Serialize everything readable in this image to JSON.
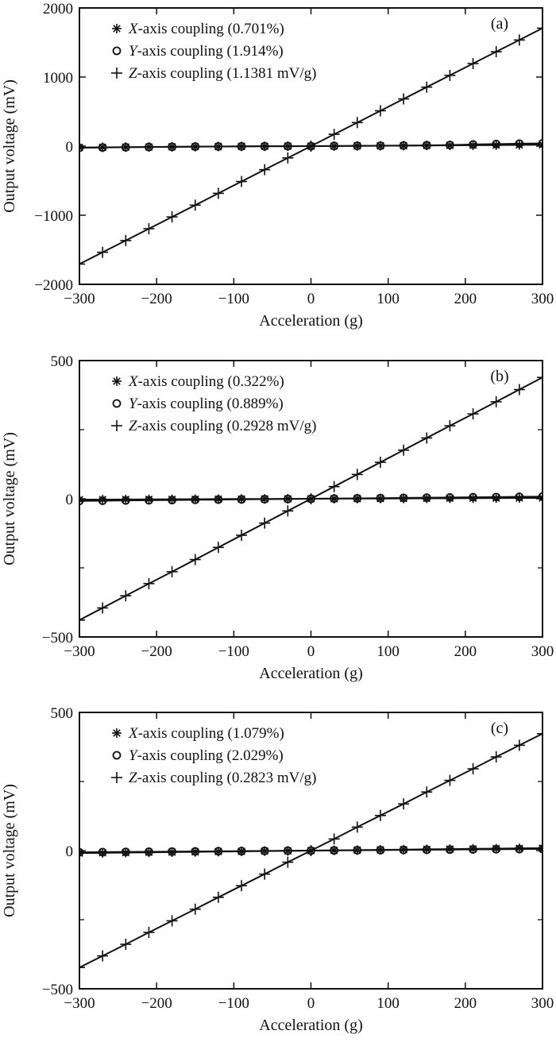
{
  "chart_data": [
    {
      "type": "line",
      "panel_label": "(a)",
      "xlabel": "Acceleration (g)",
      "ylabel": "Output voltage (mV)",
      "xlim": [
        -300,
        300
      ],
      "ylim": [
        -2000,
        2000
      ],
      "xticks": [
        -300,
        -200,
        -100,
        0,
        100,
        200,
        300
      ],
      "xtick_labels": [
        "−300",
        "−200",
        "−100",
        "0",
        "100",
        "200",
        "300"
      ],
      "yticks": [
        -2000,
        -1000,
        0,
        1000,
        2000
      ],
      "ytick_labels": [
        "−2000",
        "−1000",
        "0",
        "1000",
        "2000"
      ],
      "grid": false,
      "legend_position": "top-left",
      "x": [
        -300,
        -270,
        -240,
        -210,
        -180,
        -150,
        -120,
        -90,
        -60,
        -30,
        0,
        30,
        60,
        90,
        120,
        150,
        180,
        210,
        240,
        270,
        300
      ],
      "series": [
        {
          "name": "X-axis coupling (0.701%)",
          "axis_letter": "X",
          "legend_rest": "-axis coupling (0.701%)",
          "marker": "asterisk",
          "values": [
            -20,
            -17,
            -14,
            -12,
            -10,
            -8,
            -6,
            -4,
            -2,
            -1,
            0,
            1,
            3,
            5,
            7,
            9,
            11,
            13,
            15,
            17,
            20
          ]
        },
        {
          "name": "Y-axis coupling (1.914%)",
          "axis_letter": "Y",
          "legend_rest": "-axis coupling (1.914%)",
          "marker": "circle",
          "values": [
            -24,
            -20,
            -16,
            -13,
            -10,
            -7,
            -5,
            -3,
            -2,
            -1,
            0,
            2,
            4,
            6,
            9,
            12,
            16,
            24,
            30,
            36,
            40
          ]
        },
        {
          "name": "Z-axis coupling (1.1381 mV/g)",
          "axis_letter": "Z",
          "legend_rest": "-axis coupling (1.1381 mV/g)",
          "marker": "plus",
          "values": [
            -1707,
            -1536,
            -1366,
            -1195,
            -1024,
            -854,
            -683,
            -512,
            -341,
            -171,
            0,
            171,
            341,
            512,
            683,
            854,
            1024,
            1195,
            1366,
            1536,
            1707
          ]
        }
      ]
    },
    {
      "type": "line",
      "panel_label": "(b)",
      "xlabel": "Acceleration (g)",
      "ylabel": "Output voltage (mV)",
      "xlim": [
        -300,
        300
      ],
      "ylim": [
        -500,
        500
      ],
      "xticks": [
        -300,
        -200,
        -100,
        0,
        100,
        200,
        300
      ],
      "xtick_labels": [
        "−300",
        "−200",
        "−100",
        "0",
        "100",
        "200",
        "300"
      ],
      "yticks": [
        -500,
        0,
        500
      ],
      "ytick_labels": [
        "−500",
        "0",
        "500"
      ],
      "minor_yticks": [
        -250,
        250
      ],
      "grid": false,
      "legend_position": "top-left",
      "x": [
        -300,
        -270,
        -240,
        -210,
        -180,
        -150,
        -120,
        -90,
        -60,
        -30,
        0,
        30,
        60,
        90,
        120,
        150,
        180,
        210,
        240,
        270,
        300
      ],
      "series": [
        {
          "name": "X-axis coupling (0.322%)",
          "axis_letter": "X",
          "legend_rest": "-axis coupling (0.322%)",
          "marker": "asterisk",
          "values": [
            -3,
            -2.7,
            -2.4,
            -2.1,
            -1.8,
            -1.5,
            -1.2,
            -0.9,
            -0.6,
            -0.3,
            0,
            0.3,
            0.6,
            0.9,
            1.2,
            1.5,
            1.8,
            2.1,
            2.4,
            2.7,
            3
          ]
        },
        {
          "name": "Y-axis coupling (0.889%)",
          "axis_letter": "Y",
          "legend_rest": "-axis coupling (0.889%)",
          "marker": "circle",
          "values": [
            -7.8,
            -7,
            -6.2,
            -5.5,
            -4.7,
            -3.9,
            -3.1,
            -2.3,
            -1.6,
            -0.8,
            0,
            0.8,
            1.6,
            2.3,
            3.1,
            3.9,
            4.7,
            5.5,
            6.2,
            7,
            7.8
          ]
        },
        {
          "name": "Z-axis coupling (0.2928 mV/g)",
          "axis_letter": "Z",
          "legend_rest": "-axis coupling (0.2928 mV/g)",
          "marker": "plus",
          "values": [
            -439,
            -395,
            -351,
            -307,
            -264,
            -220,
            -176,
            -132,
            -88,
            -44,
            0,
            44,
            88,
            132,
            176,
            220,
            264,
            307,
            351,
            395,
            439
          ]
        }
      ]
    },
    {
      "type": "line",
      "panel_label": "(c)",
      "xlabel": "Acceleration (g)",
      "ylabel": "Output voltage (mV)",
      "xlim": [
        -300,
        300
      ],
      "ylim": [
        -500,
        500
      ],
      "xticks": [
        -300,
        -200,
        -100,
        0,
        100,
        200,
        300
      ],
      "xtick_labels": [
        "−300",
        "−200",
        "−100",
        "0",
        "100",
        "200",
        "300"
      ],
      "yticks": [
        -500,
        0,
        500
      ],
      "ytick_labels": [
        "−500",
        "0",
        "500"
      ],
      "minor_yticks": [
        -250,
        250
      ],
      "grid": false,
      "legend_position": "top-left",
      "x": [
        -300,
        -270,
        -240,
        -210,
        -180,
        -150,
        -120,
        -90,
        -60,
        -30,
        0,
        30,
        60,
        90,
        120,
        150,
        180,
        210,
        240,
        270,
        300
      ],
      "series": [
        {
          "name": "X-axis coupling (1.079%)",
          "axis_letter": "X",
          "legend_rest": "-axis coupling (1.079%)",
          "marker": "asterisk",
          "values": [
            -9,
            -8.2,
            -7.3,
            -6.4,
            -5.5,
            -4.6,
            -3.6,
            -2.7,
            -1.8,
            -0.9,
            0,
            0.9,
            1.8,
            2.7,
            3.6,
            4.6,
            5.5,
            6.4,
            7.3,
            8.2,
            9
          ]
        },
        {
          "name": "Y-axis coupling (2.029%)",
          "axis_letter": "Y",
          "legend_rest": "-axis coupling (2.029%)",
          "marker": "circle",
          "values": [
            -6,
            -5.4,
            -4.8,
            -4.2,
            -3.6,
            -3,
            -2.4,
            -1.8,
            -1.2,
            -0.6,
            0,
            0.6,
            1.2,
            1.8,
            2.4,
            3,
            3.6,
            4.2,
            4.8,
            5.4,
            6
          ]
        },
        {
          "name": "Z-axis coupling (0.2823 mV/g)",
          "axis_letter": "Z",
          "legend_rest": "-axis coupling (0.2823 mV/g)",
          "marker": "plus",
          "values": [
            -423,
            -381,
            -339,
            -296,
            -254,
            -212,
            -169,
            -127,
            -85,
            -42,
            0,
            42,
            85,
            127,
            169,
            212,
            254,
            296,
            339,
            381,
            423
          ]
        }
      ]
    }
  ]
}
